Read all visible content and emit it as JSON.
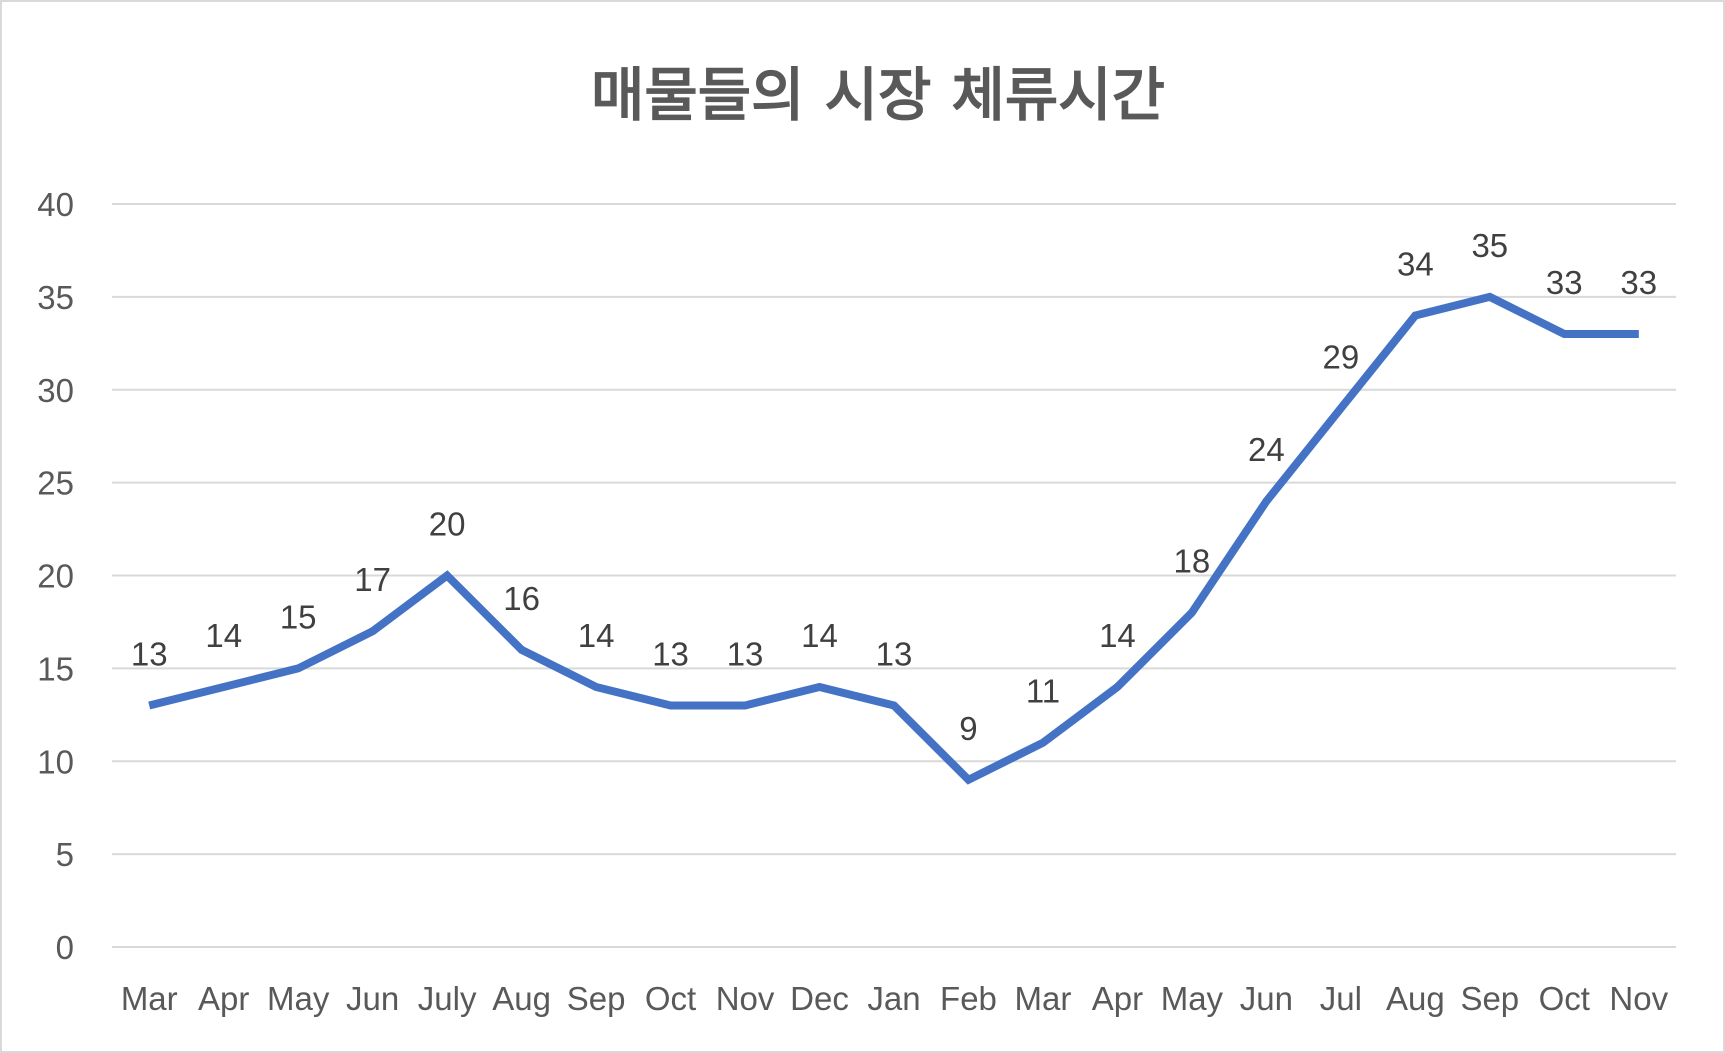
{
  "chart_data": {
    "type": "line",
    "title": "매물들의 시장 체류시간",
    "xlabel": "",
    "ylabel": "",
    "categories": [
      "Mar",
      "Apr",
      "May",
      "Jun",
      "July",
      "Aug",
      "Sep",
      "Oct",
      "Nov",
      "Dec",
      "Jan",
      "Feb",
      "Mar",
      "Apr",
      "May",
      "Jun",
      "Jul",
      "Aug",
      "Sep",
      "Oct",
      "Nov"
    ],
    "series": [
      {
        "values": [
          13,
          14,
          15,
          17,
          20,
          16,
          14,
          13,
          13,
          14,
          13,
          9,
          11,
          14,
          18,
          24,
          29,
          34,
          35,
          33,
          33
        ]
      }
    ],
    "ylim": [
      0,
      40
    ],
    "yticks": [
      0,
      5,
      10,
      15,
      20,
      25,
      30,
      35,
      40
    ],
    "grid": true,
    "legend": "none",
    "data_labels": true,
    "line_color": "#4472C4"
  }
}
